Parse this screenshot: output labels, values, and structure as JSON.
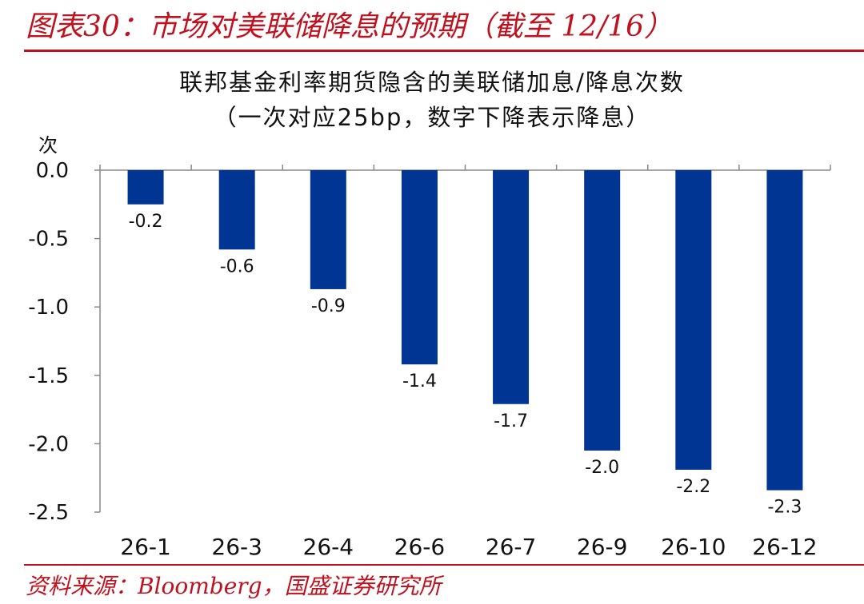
{
  "figure": {
    "title": "图表30：市场对美联储降息的预期（截至 12/16）",
    "source": "资料来源：Bloomberg，国盛证券研究所"
  },
  "colors": {
    "accent": "#c0111f",
    "bar": "#003594"
  },
  "chart_data": {
    "type": "bar",
    "title": "联邦基金利率期货隐含的美联储加息/降息次数",
    "subtitle": "（一次对应25bp，数字下降表示降息）",
    "ylabel": "次",
    "xlabel": "",
    "categories": [
      "26-1",
      "26-3",
      "26-4",
      "26-6",
      "26-7",
      "26-9",
      "26-10",
      "26-12"
    ],
    "values": [
      -0.25,
      -0.58,
      -0.87,
      -1.42,
      -1.71,
      -2.05,
      -2.19,
      -2.34
    ],
    "data_labels": [
      "-0.2",
      "-0.6",
      "-0.9",
      "-1.4",
      "-1.7",
      "-2.0",
      "-2.2",
      "-2.3"
    ],
    "ylim": [
      -2.5,
      0.0
    ],
    "yticks": [
      0.0,
      -0.5,
      -1.0,
      -1.5,
      -2.0,
      -2.5
    ],
    "ytick_labels": [
      "0.0",
      "-0.5",
      "-1.0",
      "-1.5",
      "-2.0",
      "-2.5"
    ],
    "grid": false,
    "legend": "none"
  }
}
